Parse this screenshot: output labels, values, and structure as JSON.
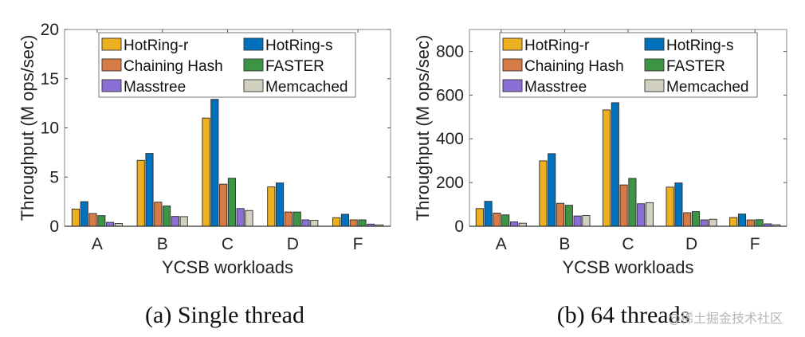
{
  "chart_data": [
    {
      "type": "bar",
      "id": "single-thread",
      "caption": "(a)  Single thread",
      "title": "",
      "xlabel": "YCSB workloads",
      "ylabel": "Throughput (M ops/sec)",
      "ylim": [
        0,
        20
      ],
      "yticks": [
        0,
        5,
        10,
        15,
        20
      ],
      "grid": false,
      "legend_position": "top",
      "categories": [
        "A",
        "B",
        "C",
        "D",
        "F"
      ],
      "series": [
        {
          "name": "HotRing-r",
          "color": "#EDB120",
          "values": [
            1.75,
            6.7,
            11.0,
            4.0,
            0.87
          ]
        },
        {
          "name": "HotRing-s",
          "color": "#0072BD",
          "values": [
            2.5,
            7.4,
            12.9,
            4.4,
            1.22
          ]
        },
        {
          "name": "Chaining Hash",
          "color": "#D57B43",
          "values": [
            1.3,
            2.45,
            4.28,
            1.45,
            0.65
          ]
        },
        {
          "name": "FASTER",
          "color": "#3E9445",
          "values": [
            1.08,
            2.06,
            4.88,
            1.45,
            0.65
          ]
        },
        {
          "name": "Masstree",
          "color": "#8C6FD6",
          "values": [
            0.4,
            1.0,
            1.8,
            0.65,
            0.22
          ]
        },
        {
          "name": "Memcached",
          "color": "#D2D1C0",
          "values": [
            0.28,
            0.98,
            1.6,
            0.6,
            0.14
          ]
        }
      ]
    },
    {
      "type": "bar",
      "id": "64-threads",
      "caption": "(b)  64 threads",
      "title": "",
      "xlabel": "YCSB workloads",
      "ylabel": "Throughput (M ops/sec)",
      "ylim": [
        0,
        900
      ],
      "yticks": [
        0,
        200,
        400,
        600,
        800
      ],
      "grid": false,
      "legend_position": "top",
      "categories": [
        "A",
        "B",
        "C",
        "D",
        "F"
      ],
      "series": [
        {
          "name": "HotRing-r",
          "color": "#EDB120",
          "values": [
            81,
            299,
            532,
            179,
            40
          ]
        },
        {
          "name": "HotRing-s",
          "color": "#0072BD",
          "values": [
            114,
            332,
            565,
            198,
            56
          ]
        },
        {
          "name": "Chaining Hash",
          "color": "#D57B43",
          "values": [
            60,
            105,
            189,
            62,
            29
          ]
        },
        {
          "name": "FASTER",
          "color": "#3E9445",
          "values": [
            52,
            96,
            219,
            67,
            30
          ]
        },
        {
          "name": "Masstree",
          "color": "#8C6FD6",
          "values": [
            20,
            47,
            103,
            29,
            11
          ]
        },
        {
          "name": "Memcached",
          "color": "#D2D1C0",
          "values": [
            14,
            49,
            108,
            32,
            7
          ]
        }
      ]
    }
  ],
  "watermark": "@稀土掘金技术社区"
}
